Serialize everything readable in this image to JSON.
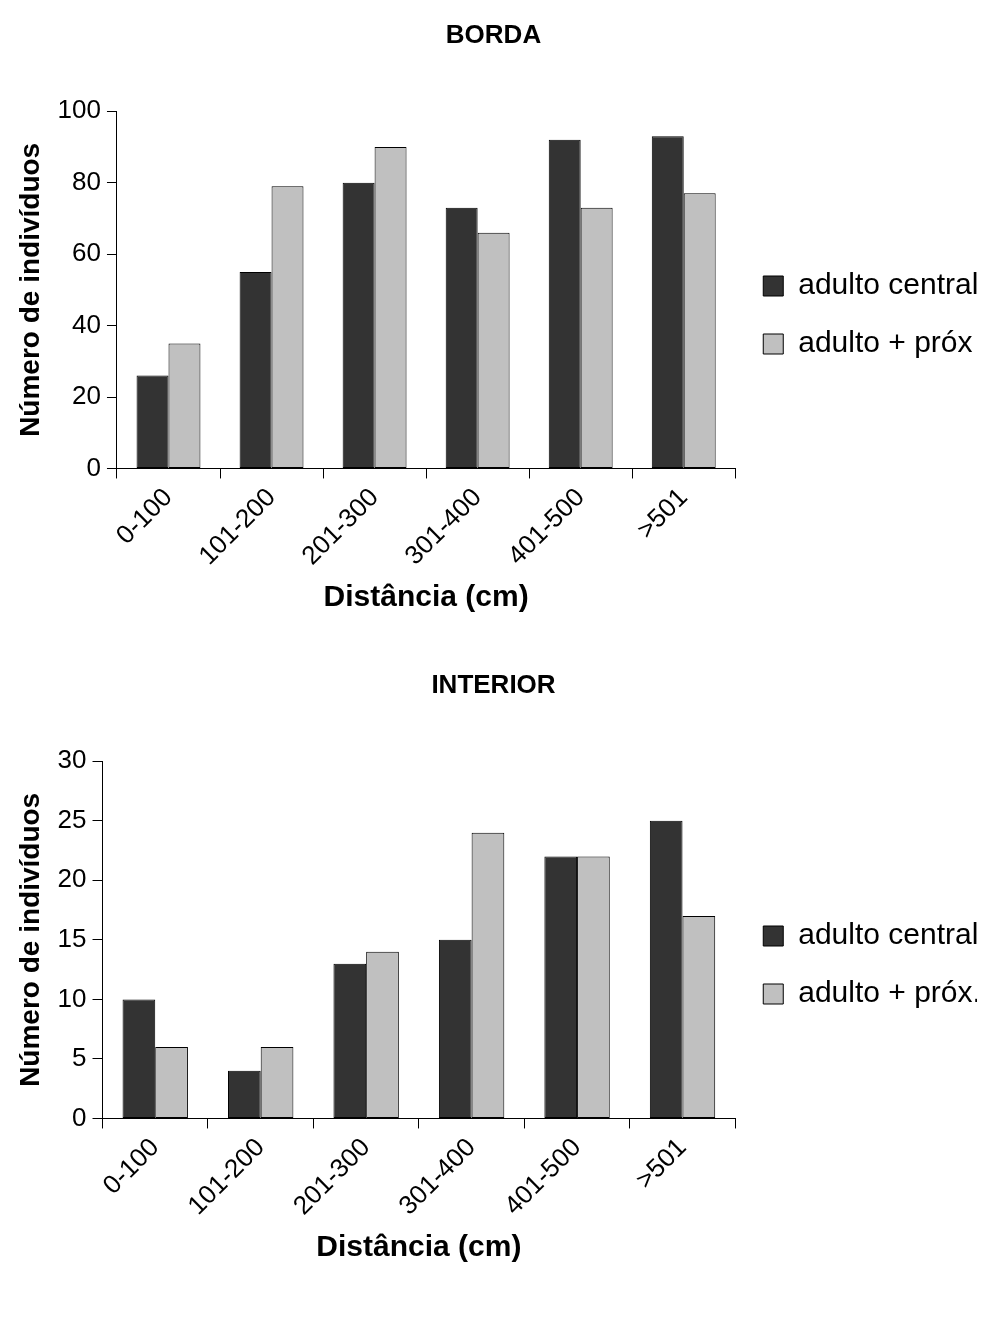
{
  "chart_data": [
    {
      "type": "bar",
      "title": "BORDA",
      "xlabel": "Distância (cm)",
      "ylabel": "Número de indivíduos",
      "categories": [
        "0-100",
        "101-200",
        "201-300",
        "301-400",
        "401-500",
        ">501"
      ],
      "series": [
        {
          "name": "adulto central",
          "color": "#333333",
          "values": [
            26,
            55,
            80,
            73,
            92,
            93
          ]
        },
        {
          "name": "adulto + próx",
          "color": "#c0c0c0",
          "values": [
            35,
            79,
            90,
            66,
            73,
            77
          ]
        }
      ],
      "ylim": [
        0,
        100
      ],
      "yticks": [
        0,
        20,
        40,
        60,
        80,
        100
      ],
      "grid": false,
      "legend": "right"
    },
    {
      "type": "bar",
      "title": "INTERIOR",
      "xlabel": "Distância (cm)",
      "ylabel": "Número de indivíduos",
      "categories": [
        "0-100",
        "101-200",
        "201-300",
        "301-400",
        "401-500",
        ">501"
      ],
      "series": [
        {
          "name": "adulto central",
          "color": "#333333",
          "values": [
            10,
            4,
            13,
            15,
            22,
            25
          ]
        },
        {
          "name": "adulto + próx.",
          "color": "#c0c0c0",
          "values": [
            6,
            6,
            14,
            24,
            22,
            17
          ]
        }
      ],
      "ylim": [
        0,
        30
      ],
      "yticks": [
        0,
        5,
        10,
        15,
        20,
        25,
        30
      ],
      "grid": false,
      "legend": "right"
    }
  ]
}
